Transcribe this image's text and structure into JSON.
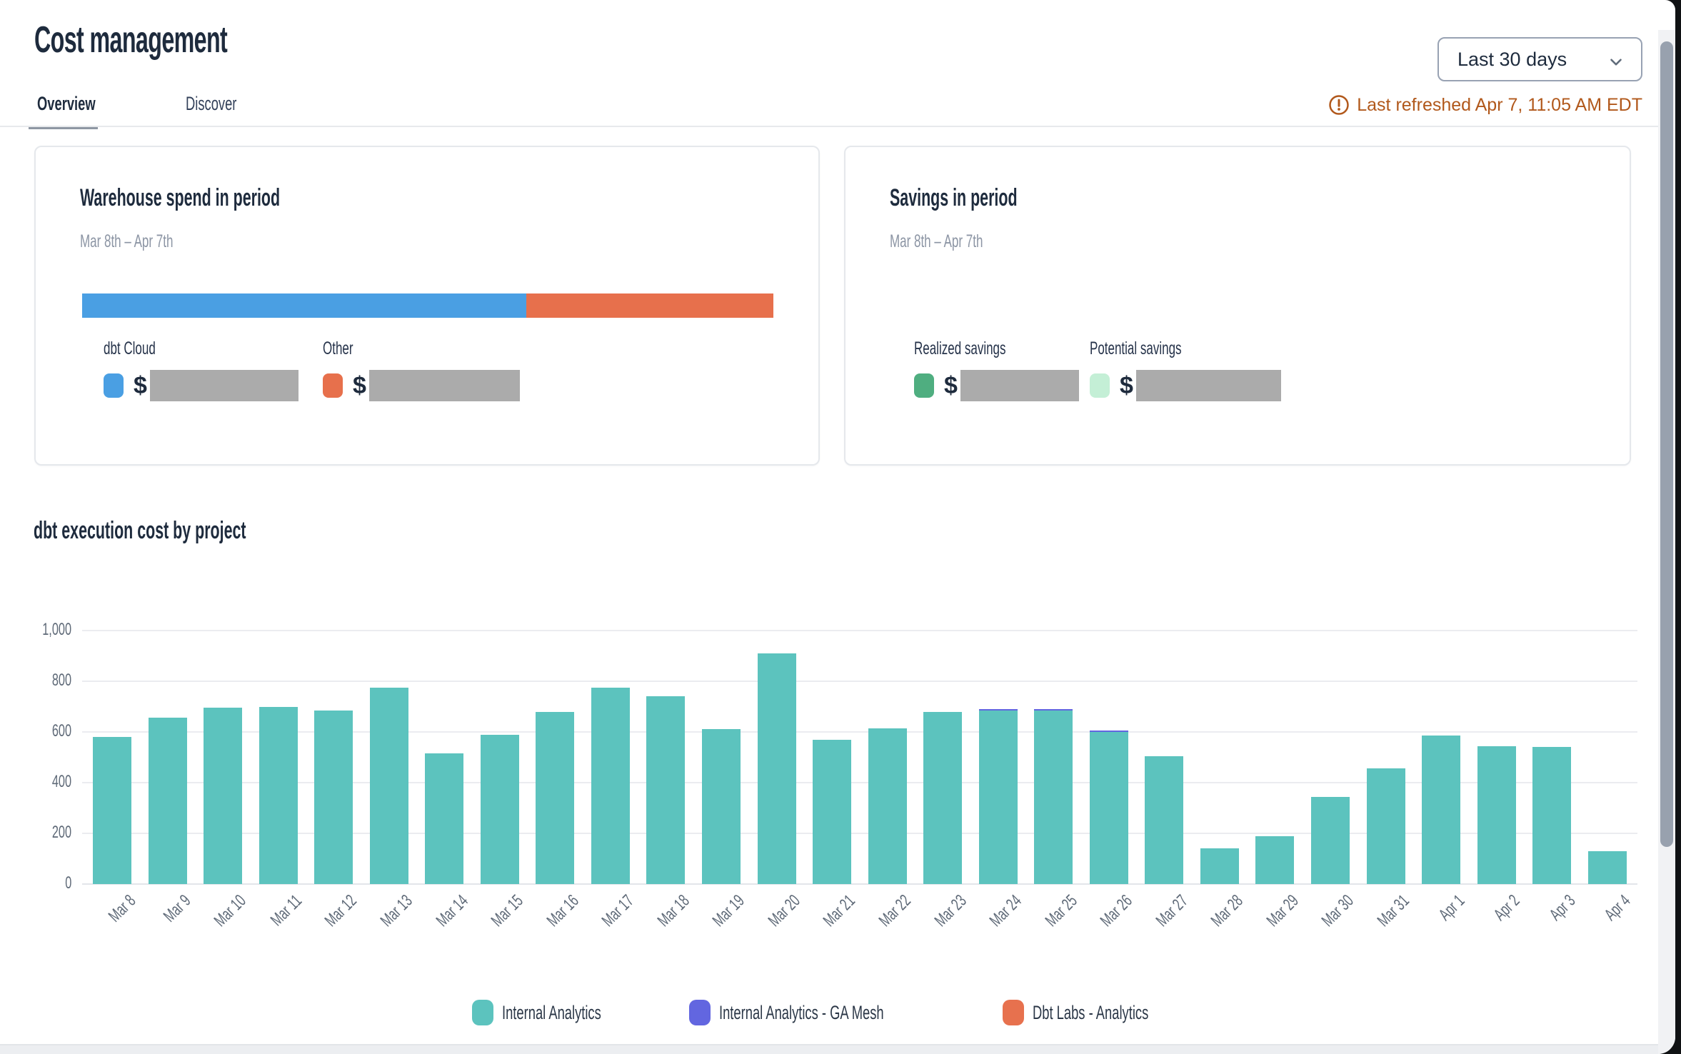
{
  "header": {
    "title": "Cost management",
    "tabs": [
      {
        "label": "Overview",
        "active": true
      },
      {
        "label": "Discover",
        "active": false
      }
    ],
    "date_range_selector": {
      "value": "Last 30 days"
    },
    "last_refreshed": "Last refreshed Apr 7, 11:05 AM EDT",
    "status_color": "#b1581b"
  },
  "cards": {
    "warehouse_spend": {
      "title": "Warehouse spend in period",
      "subtitle": "Mar 8th – Apr 7th",
      "stacked_bar": {
        "segments": [
          {
            "name": "dbt Cloud",
            "color": "#4a9fe3",
            "fraction": 0.643
          },
          {
            "name": "Other",
            "color": "#e7704c",
            "fraction": 0.357
          }
        ]
      },
      "legend": [
        {
          "label": "dbt Cloud",
          "color": "#4a9fe3",
          "value_prefix": "$",
          "value_redacted": true
        },
        {
          "label": "Other",
          "color": "#e7704c",
          "value_prefix": "$",
          "value_redacted": true
        }
      ]
    },
    "savings": {
      "title": "Savings in period",
      "subtitle": "Mar 8th – Apr 7th",
      "legend": [
        {
          "label": "Realized savings",
          "color": "#4fae80",
          "value_prefix": "$",
          "value_redacted": true
        },
        {
          "label": "Potential savings",
          "color": "#c4efd6",
          "value_prefix": "$",
          "value_redacted": true
        }
      ]
    }
  },
  "chart_section": {
    "title": "dbt execution cost by project"
  },
  "chart_data": {
    "type": "bar",
    "stacked": true,
    "title": "dbt execution cost by project",
    "xlabel": "",
    "ylabel": "",
    "ylim": [
      0,
      1000
    ],
    "grid": true,
    "legend_position": "bottom",
    "yticks": [
      {
        "v": 0,
        "label": "0"
      },
      {
        "v": 200,
        "label": "200"
      },
      {
        "v": 400,
        "label": "400"
      },
      {
        "v": 600,
        "label": "600"
      },
      {
        "v": 800,
        "label": "800"
      },
      {
        "v": 1000,
        "label": "1,000"
      }
    ],
    "categories": [
      "Mar 8",
      "Mar 9",
      "Mar 10",
      "Mar 11",
      "Mar 12",
      "Mar 13",
      "Mar 14",
      "Mar 15",
      "Mar 16",
      "Mar 17",
      "Mar 18",
      "Mar 19",
      "Mar 20",
      "Mar 21",
      "Mar 22",
      "Mar 23",
      "Mar 24",
      "Mar 25",
      "Mar 26",
      "Mar 27",
      "Mar 28",
      "Mar 29",
      "Mar 30",
      "Mar 31",
      "Apr 1",
      "Apr 2",
      "Apr 3",
      "Apr 4"
    ],
    "series": [
      {
        "name": "Internal Analytics",
        "color": "#5cc3be",
        "values": [
          580,
          655,
          695,
          700,
          685,
          775,
          515,
          590,
          680,
          775,
          740,
          610,
          910,
          570,
          615,
          680,
          685,
          685,
          600,
          505,
          140,
          190,
          345,
          455,
          585,
          545,
          540,
          130
        ]
      },
      {
        "name": "Internal Analytics - GA Mesh",
        "color": "#6266e0",
        "values": [
          0,
          0,
          0,
          0,
          0,
          0,
          0,
          0,
          0,
          0,
          0,
          0,
          0,
          0,
          0,
          0,
          6,
          6,
          6,
          0,
          0,
          0,
          0,
          0,
          0,
          0,
          0,
          0
        ]
      },
      {
        "name": "Dbt Labs - Analytics",
        "color": "#e7714e",
        "values": [
          0,
          0,
          0,
          0,
          0,
          0,
          0,
          0,
          0,
          0,
          0,
          0,
          0,
          0,
          0,
          0,
          0,
          0,
          0,
          0,
          0,
          0,
          0,
          0,
          0,
          0,
          0,
          0
        ]
      }
    ]
  }
}
